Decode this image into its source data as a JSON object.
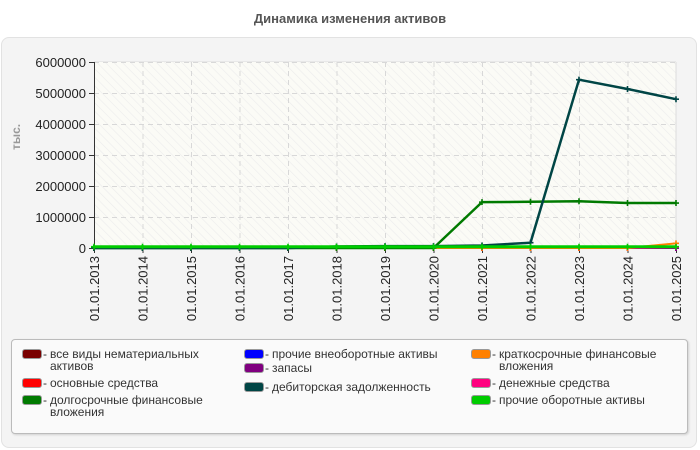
{
  "title": "Динамика изменения активов",
  "chart_data": {
    "type": "line",
    "title": "Динамика изменения активов",
    "xlabel": "",
    "ylabel": "тыс.",
    "ylim": [
      0,
      6000000
    ],
    "yticks": [
      "0",
      "1000000",
      "2000000",
      "3000000",
      "4000000",
      "5000000",
      "6000000"
    ],
    "grid": true,
    "legend_position": "bottom",
    "x": [
      "01.01.2013",
      "01.01.2014",
      "01.01.2015",
      "01.01.2016",
      "01.01.2017",
      "01.01.2018",
      "01.01.2019",
      "01.01.2020",
      "01.01.2021",
      "01.01.2022",
      "01.01.2023",
      "01.01.2024",
      "01.01.2025"
    ],
    "series": [
      {
        "name": "все виды нематериальных активов",
        "color": "#7a0000",
        "values": [
          0,
          0,
          0,
          0,
          0,
          0,
          0,
          0,
          0,
          0,
          0,
          0,
          0
        ]
      },
      {
        "name": "основные средства",
        "color": "#ff0000",
        "values": [
          0,
          0,
          0,
          0,
          0,
          0,
          0,
          0,
          0,
          0,
          0,
          0,
          0
        ]
      },
      {
        "name": "долгосрочные финансовые вложения",
        "color": "#007a00",
        "values": [
          0,
          0,
          0,
          0,
          0,
          0,
          0,
          0,
          1480000,
          1490000,
          1510000,
          1450000,
          1450000
        ]
      },
      {
        "name": "прочие внеоборотные активы",
        "color": "#0000ff",
        "values": [
          0,
          0,
          0,
          0,
          0,
          0,
          0,
          0,
          0,
          0,
          0,
          0,
          0
        ]
      },
      {
        "name": "запасы",
        "color": "#800080",
        "values": [
          0,
          0,
          0,
          0,
          0,
          0,
          0,
          0,
          0,
          0,
          0,
          0,
          0
        ]
      },
      {
        "name": "дебиторская задолженность",
        "color": "#004545",
        "values": [
          0,
          0,
          0,
          0,
          0,
          50000,
          60000,
          60000,
          80000,
          170000,
          5430000,
          5130000,
          4800000
        ]
      },
      {
        "name": "краткосрочные финансовые вложения",
        "color": "#ff8000",
        "values": [
          0,
          0,
          0,
          0,
          0,
          0,
          0,
          0,
          0,
          0,
          0,
          0,
          150000
        ]
      },
      {
        "name": "денежные средства",
        "color": "#ff0080",
        "values": [
          0,
          0,
          0,
          0,
          0,
          0,
          0,
          0,
          0,
          0,
          0,
          0,
          30000
        ]
      },
      {
        "name": "прочие оборотные активы",
        "color": "#00cc00",
        "values": [
          10000,
          10000,
          10000,
          10000,
          10000,
          10000,
          10000,
          10000,
          10000,
          10000,
          10000,
          10000,
          10000
        ]
      }
    ]
  },
  "legend": {
    "col1": [
      {
        "label": "все виды нематериальных активов",
        "color": "#7a0000"
      },
      {
        "label": "основные средства",
        "color": "#ff0000"
      },
      {
        "label": "долгосрочные финансовые вложения",
        "color": "#007a00"
      }
    ],
    "col2": [
      {
        "label": "прочие внеоборотные активы",
        "color": "#0000ff"
      },
      {
        "label": "запасы",
        "color": "#800080"
      },
      {
        "label": "дебиторская задолженность",
        "color": "#004545"
      }
    ],
    "col3": [
      {
        "label": "краткосрочные финансовые вложения",
        "color": "#ff8000"
      },
      {
        "label": "денежные средства",
        "color": "#ff0080"
      },
      {
        "label": "прочие оборотные активы",
        "color": "#00cc00"
      }
    ],
    "dash": "-"
  }
}
